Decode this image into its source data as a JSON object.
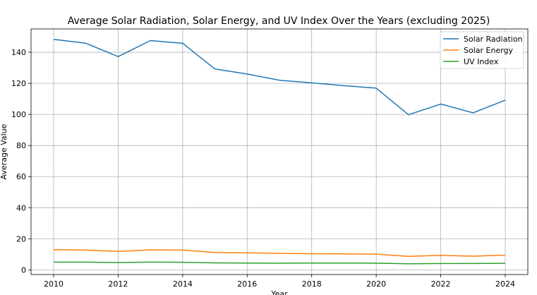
{
  "chart_data": {
    "type": "line",
    "title": "Average Solar Radiation, Solar Energy, and UV Index Over the Years (excluding 2025)",
    "xlabel": "Year",
    "ylabel": "Average Value",
    "x": [
      2010,
      2011,
      2012,
      2013,
      2014,
      2015,
      2016,
      2017,
      2018,
      2019,
      2020,
      2021,
      2022,
      2023,
      2024
    ],
    "xticks": [
      2010,
      2012,
      2014,
      2016,
      2018,
      2020,
      2022,
      2024
    ],
    "yticks": [
      0,
      20,
      40,
      60,
      80,
      100,
      120,
      140
    ],
    "xlim": [
      2009.3,
      2024.7
    ],
    "ylim": [
      -3,
      155
    ],
    "grid": true,
    "legend_position": "top-right",
    "series": [
      {
        "name": "Solar Radiation",
        "color": "#1f77b4",
        "values": [
          148.3,
          145.8,
          137.2,
          147.5,
          145.8,
          129.2,
          126.0,
          122.0,
          120.3,
          118.5,
          116.9,
          99.8,
          106.7,
          101.0,
          109.2
        ]
      },
      {
        "name": "Solar Energy",
        "color": "#ff7f0e",
        "values": [
          13.0,
          12.7,
          11.9,
          12.9,
          12.7,
          11.2,
          11.0,
          10.6,
          10.4,
          10.3,
          10.1,
          8.7,
          9.3,
          8.8,
          9.5
        ]
      },
      {
        "name": "UV Index",
        "color": "#2ca02c",
        "values": [
          5.0,
          5.0,
          4.7,
          5.0,
          4.9,
          4.5,
          4.4,
          4.3,
          4.4,
          4.4,
          4.3,
          3.9,
          4.1,
          4.1,
          4.2
        ]
      }
    ]
  }
}
